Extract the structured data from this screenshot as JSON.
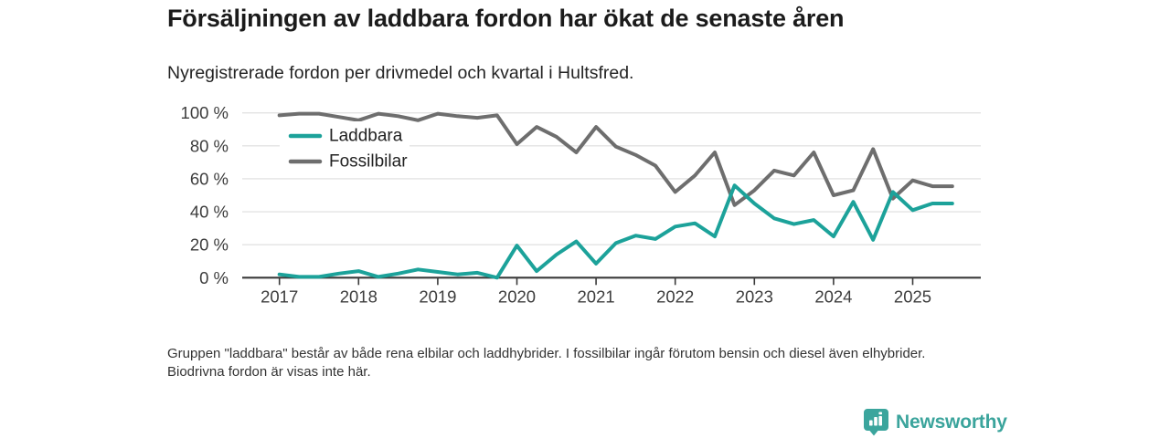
{
  "header": {
    "title": "Försäljningen av laddbara fordon har ökat de senaste åren",
    "subtitle": "Nyregistrerade fordon per drivmedel och kvartal i Hultsfred."
  },
  "chart_data": {
    "type": "line",
    "title": "Försäljningen av laddbara fordon har ökat de senaste åren",
    "subtitle": "Nyregistrerade fordon per drivmedel och kvartal i Hultsfred.",
    "frequency": "quarterly",
    "x_start": "2017 Q1",
    "x_end": "2025 Q3",
    "x_tick_labels": [
      "2017",
      "2018",
      "2019",
      "2020",
      "2021",
      "2022",
      "2023",
      "2024",
      "2025"
    ],
    "y_tick_labels": [
      "0 %",
      "20 %",
      "40 %",
      "60 %",
      "80 %",
      "100 %"
    ],
    "ylim": [
      0,
      100
    ],
    "grid": "horizontal",
    "legend_position": "inside-top-left",
    "series": [
      {
        "name": "Laddbara",
        "color": "#1CA29A",
        "values": [
          2,
          0.5,
          0.5,
          2.5,
          4,
          0.5,
          2.5,
          5,
          3.5,
          2,
          3,
          0,
          19.5,
          4,
          14,
          22,
          8.5,
          21,
          25.5,
          23.5,
          31,
          33,
          25,
          56,
          45,
          36,
          32.5,
          35,
          25,
          46,
          23,
          52,
          41,
          45,
          45
        ]
      },
      {
        "name": "Fossilbilar",
        "color": "#6E6E6E",
        "values": [
          98.5,
          99.5,
          99.5,
          97.5,
          95.5,
          99.5,
          98,
          95.5,
          99.5,
          98,
          97,
          98.5,
          81,
          91.5,
          85.5,
          76,
          91.5,
          79.5,
          74.5,
          68,
          52,
          62,
          76,
          44,
          53,
          65,
          62,
          76,
          50,
          53,
          78,
          48,
          59,
          55.5,
          55.5
        ]
      }
    ],
    "colors": {
      "grid_line": "#e3e3e3",
      "axis_line": "#3a3a3a",
      "tick_label": "#3d3d3d",
      "legend_text": "#222222"
    }
  },
  "footnote": "Gruppen \"laddbara\" består av både rena elbilar och laddhybrider. I fossilbilar ingår förutom bensin och diesel även elhybrider. Biodrivna fordon är visas inte här.",
  "logo": {
    "text": "Newsworthy",
    "color": "#3BA49C"
  }
}
